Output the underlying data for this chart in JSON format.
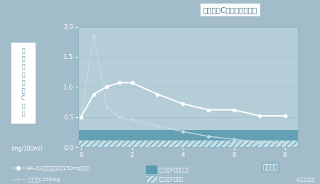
{
  "bg_color": "#a2bcc9",
  "plot_bg_color": "#b5cdd7",
  "title": "ビタミンC血中濃度の推移",
  "xlabel": "経過時間",
  "ylabel_box": "血中ビタミンC濃度",
  "ylabel_unit": "(mg/100ml)",
  "ylim": [
    0,
    2.0
  ],
  "xlim": [
    -0.1,
    8.5
  ],
  "yticks": [
    0,
    0.5,
    1.0,
    1.5,
    2.0
  ],
  "xticks": [
    0,
    2,
    4,
    6,
    8
  ],
  "aa2g_x": [
    0,
    0.5,
    1,
    1.5,
    2,
    3,
    4,
    5,
    6,
    7,
    8
  ],
  "aa2g_y": [
    0.5,
    0.88,
    1.0,
    1.07,
    1.07,
    0.88,
    0.72,
    0.62,
    0.62,
    0.52,
    0.52
  ],
  "vitc_x": [
    0,
    0.5,
    1,
    1.5,
    2,
    3,
    4,
    5,
    6,
    7,
    8
  ],
  "vitc_y": [
    0.5,
    1.85,
    0.68,
    0.5,
    0.46,
    0.35,
    0.26,
    0.18,
    0.13,
    0.09,
    0.07
  ],
  "line1_color": "#ffffff",
  "line2_color": "#c5d9e3",
  "band_solid_low": 0.12,
  "band_solid_high": 0.28,
  "band_hatch_low": 0.0,
  "band_hatch_high": 0.12,
  "band_solid_color": "#5b9bb0",
  "band_hatch_color": "#7aafbf",
  "legend_aa2g": "AA-2G（ビタミンC約250mg相当）",
  "legend_vitc": "ビタミンC250mg",
  "legend_insufficient": "ビタミンCが不足気味",
  "legend_deficient": "ビタミンCが不足",
  "footnote": "※岡山大学調べ"
}
